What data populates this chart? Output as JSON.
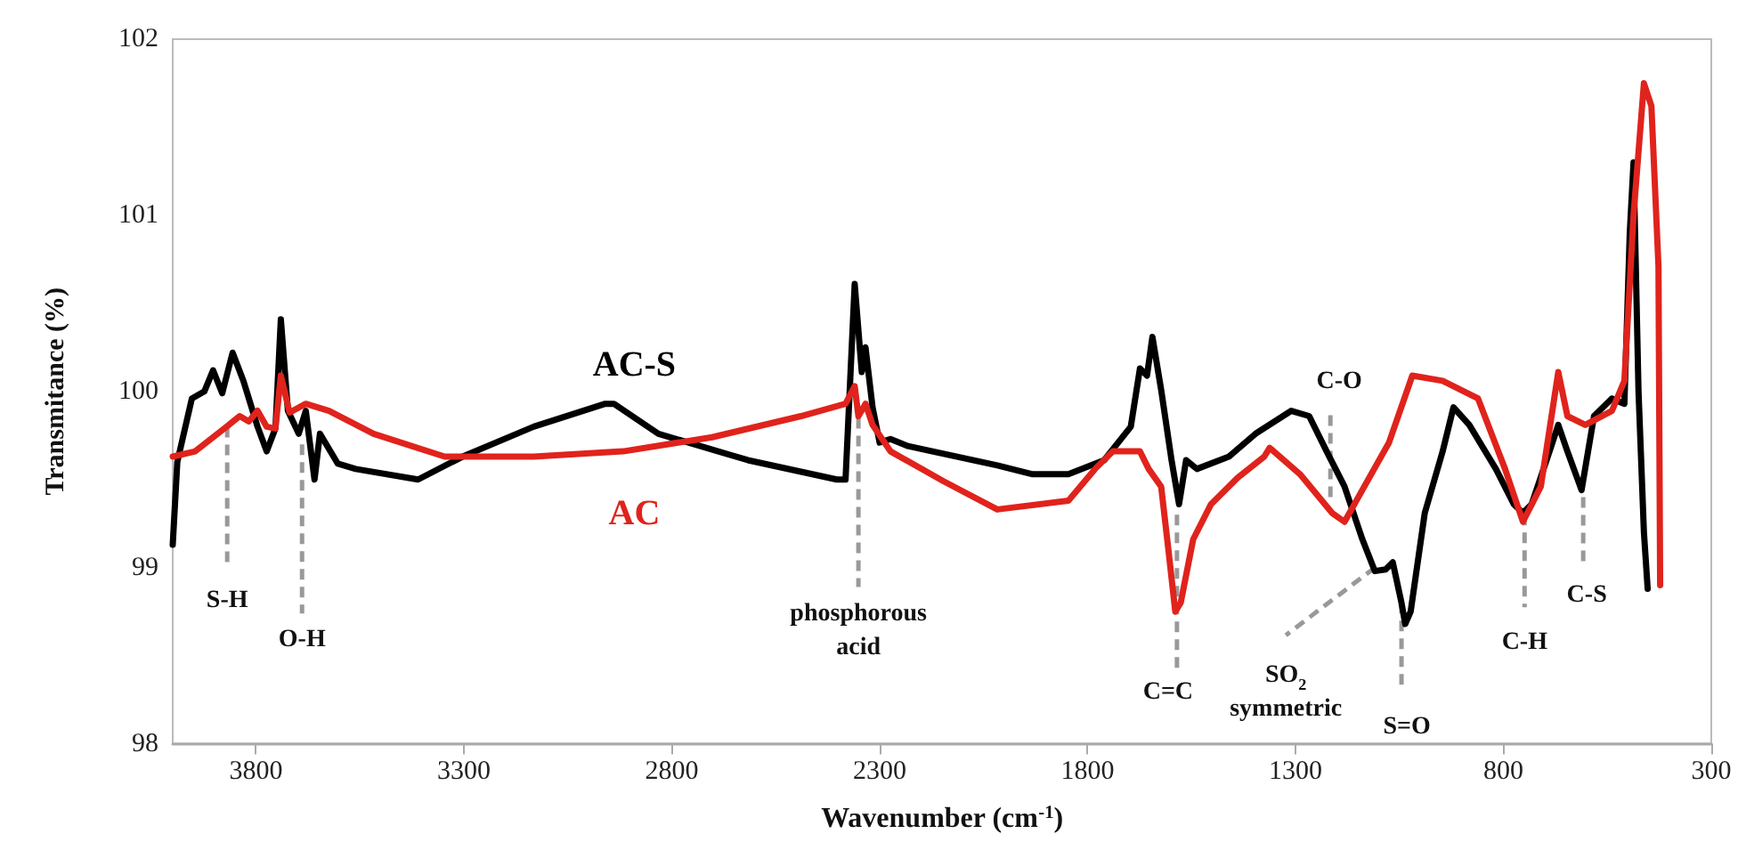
{
  "chart_data": {
    "type": "line",
    "xlabel": "Wavenumber (cm$^{-1}$)",
    "ylabel": "Transmitance (%)",
    "xlim": [
      4000,
      300
    ],
    "xticks": [
      3800,
      3300,
      2800,
      2300,
      1800,
      1300,
      800,
      300
    ],
    "ylim": [
      98,
      102
    ],
    "yticks": [
      98,
      99,
      100,
      101,
      102
    ],
    "grid": false,
    "legend": false,
    "marker": "none",
    "line_style": "solid",
    "series": [
      {
        "name": "AC-S",
        "color": "#000000",
        "x": [
          4000,
          3989,
          3954,
          3924,
          3903,
          3881,
          3856,
          3830,
          3796,
          3774,
          3753,
          3740,
          3723,
          3697,
          3680,
          3659,
          3646,
          3603,
          3560,
          3410,
          3303,
          3132,
          2960,
          2939,
          2832,
          2617,
          2403,
          2382,
          2360,
          2343,
          2334,
          2317,
          2300,
          2274,
          2232,
          2017,
          1932,
          1846,
          1760,
          1696,
          1674,
          1657,
          1644,
          1623,
          1598,
          1580,
          1563,
          1537,
          1460,
          1396,
          1310,
          1267,
          1225,
          1182,
          1139,
          1109,
          1083,
          1066,
          1045,
          1036,
          1023,
          989,
          946,
          920,
          882,
          818,
          775,
          753,
          732,
          689,
          668,
          646,
          612,
          582,
          539,
          509,
          496,
          487,
          475,
          462,
          453
        ],
        "values": [
          99.13,
          99.6,
          99.96,
          100.0,
          100.12,
          99.99,
          100.22,
          100.06,
          99.8,
          99.66,
          99.79,
          100.41,
          99.89,
          99.76,
          99.89,
          99.5,
          99.76,
          99.59,
          99.56,
          99.5,
          99.63,
          99.8,
          99.93,
          99.93,
          99.76,
          99.61,
          99.5,
          99.5,
          100.61,
          100.11,
          100.25,
          99.91,
          99.71,
          99.73,
          99.69,
          99.58,
          99.53,
          99.53,
          99.61,
          99.8,
          100.13,
          100.09,
          100.31,
          100.01,
          99.61,
          99.36,
          99.61,
          99.56,
          99.63,
          99.76,
          99.89,
          99.86,
          99.66,
          99.46,
          99.16,
          98.98,
          98.99,
          99.03,
          98.8,
          98.68,
          98.75,
          99.31,
          99.66,
          99.91,
          99.81,
          99.56,
          99.36,
          99.31,
          99.36,
          99.66,
          99.81,
          99.66,
          99.44,
          99.86,
          99.96,
          99.93,
          100.9,
          101.3,
          100.0,
          99.2,
          98.88
        ]
      },
      {
        "name": "AC",
        "color": "#e0231c",
        "x": [
          4000,
          3946,
          3881,
          3839,
          3817,
          3796,
          3774,
          3753,
          3740,
          3719,
          3680,
          3624,
          3517,
          3346,
          3132,
          2917,
          2703,
          2489,
          2382,
          2360,
          2351,
          2334,
          2317,
          2274,
          2146,
          2017,
          1846,
          1782,
          1739,
          1674,
          1653,
          1623,
          1606,
          1589,
          1576,
          1546,
          1503,
          1439,
          1375,
          1362,
          1289,
          1212,
          1182,
          1075,
          1019,
          946,
          861,
          796,
          753,
          710,
          668,
          646,
          603,
          539,
          509,
          487,
          462,
          444,
          427,
          423
        ],
        "values": [
          99.63,
          99.66,
          99.78,
          99.86,
          99.83,
          99.89,
          99.8,
          99.79,
          100.09,
          99.88,
          99.93,
          99.89,
          99.76,
          99.63,
          99.63,
          99.66,
          99.74,
          99.86,
          99.93,
          100.03,
          99.86,
          99.93,
          99.81,
          99.66,
          99.49,
          99.33,
          99.38,
          99.56,
          99.66,
          99.66,
          99.56,
          99.46,
          99.11,
          98.75,
          98.8,
          99.16,
          99.36,
          99.51,
          99.63,
          99.68,
          99.53,
          99.31,
          99.26,
          99.71,
          100.09,
          100.06,
          99.96,
          99.56,
          99.26,
          99.46,
          100.11,
          99.86,
          99.81,
          99.89,
          100.06,
          101.0,
          101.75,
          101.62,
          100.71,
          98.9
        ]
      }
    ],
    "annotations": [
      {
        "text": "S-H",
        "x": 3869,
        "y": 99.8
      },
      {
        "text": "O-H",
        "x": 3689,
        "y": 99.7
      },
      {
        "text": "phosphorous\nacid",
        "x": 2351,
        "y": 99.85
      },
      {
        "text": "C=C",
        "x": 1585,
        "y": 99.3
      },
      {
        "text": "SO$_{2}$\nsymmetric",
        "x": 1109,
        "y": 99.0
      },
      {
        "text": "C-O",
        "x": 1216,
        "y": 99.4
      },
      {
        "text": "S=O",
        "x": 1045,
        "y": 98.8
      },
      {
        "text": "C-H",
        "x": 749,
        "y": 99.3
      },
      {
        "text": "C-S",
        "x": 608,
        "y": 99.4
      }
    ]
  }
}
